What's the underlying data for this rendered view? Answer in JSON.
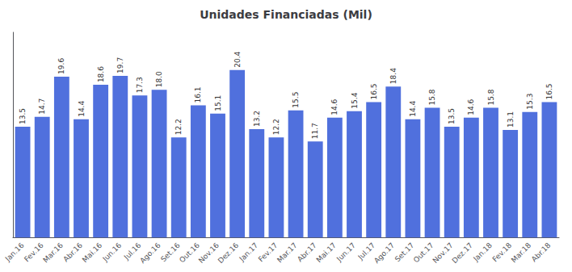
{
  "chart_data": {
    "type": "bar",
    "title": "Unidades Financiadas (Mil)",
    "categories": [
      "Jan.16",
      "Fev.16",
      "Mar.16",
      "Abr.16",
      "Mai.16",
      "Jun.16",
      "Jul.16",
      "Ago.16",
      "Set.16",
      "Out.16",
      "Nov.16",
      "Dez.16",
      "Jan.17",
      "Fev.17",
      "Mar.17",
      "Abr.17",
      "Mai.17",
      "Jun.17",
      "Jul.17",
      "Ago.17",
      "Set.17",
      "Out.17",
      "Nov.17",
      "Dez.17",
      "Jan.18",
      "Fev.18",
      "Mar.18",
      "Abr.18"
    ],
    "values": [
      13.5,
      14.7,
      19.6,
      14.4,
      18.6,
      19.7,
      17.3,
      18.0,
      12.2,
      16.1,
      15.1,
      20.4,
      13.2,
      12.2,
      15.5,
      11.7,
      14.6,
      15.4,
      16.5,
      18.4,
      14.4,
      15.8,
      13.5,
      14.6,
      15.8,
      13.1,
      15.3,
      16.5
    ],
    "value_labels": [
      "13.5",
      "14.7",
      "19.6",
      "14.4",
      "18.6",
      "19.7",
      "17.3",
      "18.0",
      "12.2",
      "16.1",
      "15.1",
      "20.4",
      "13.2",
      "12.2",
      "15.5",
      "11.7",
      "14.6",
      "15.4",
      "16.5",
      "18.4",
      "14.4",
      "15.8",
      "13.5",
      "14.6",
      "15.8",
      "13.1",
      "15.3",
      "16.5"
    ],
    "ylim": [
      0,
      25
    ],
    "grid": false,
    "tick_labels": "x",
    "data_labels": true
  }
}
